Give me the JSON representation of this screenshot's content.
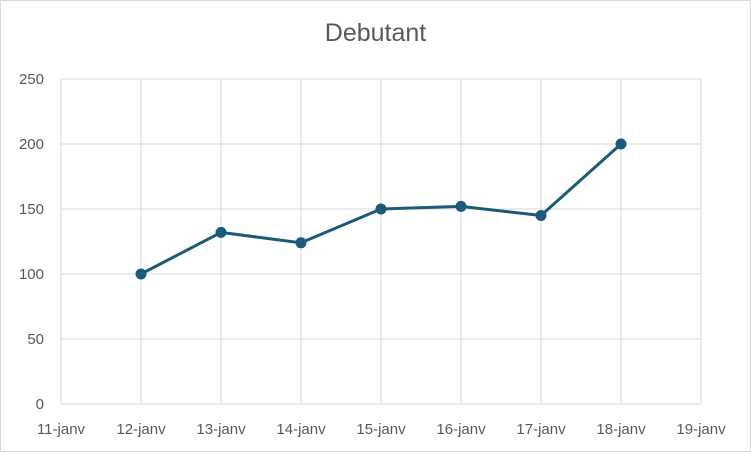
{
  "chart_data": {
    "type": "line",
    "title": "Debutant",
    "xlabel": "",
    "ylabel": "",
    "categories": [
      "11-janv",
      "12-janv",
      "13-janv",
      "14-janv",
      "15-janv",
      "16-janv",
      "17-janv",
      "18-janv",
      "19-janv"
    ],
    "series": [
      {
        "values": [
          null,
          100,
          132,
          124,
          150,
          152,
          145,
          200,
          null
        ],
        "color": "#1b5b79"
      }
    ],
    "ylim": [
      0,
      250
    ],
    "yticks": [
      0,
      50,
      100,
      150,
      200,
      250
    ],
    "grid": true,
    "grid_color": "#d9d9d9",
    "legend": "none"
  }
}
